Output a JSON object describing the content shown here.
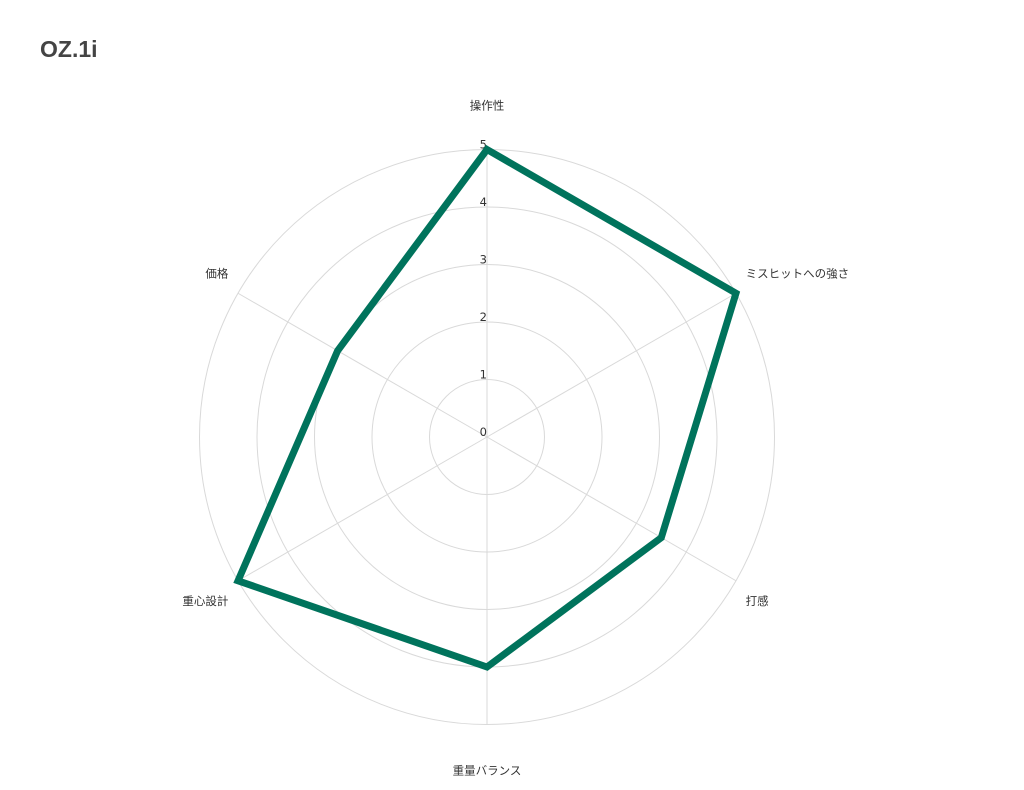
{
  "title": "OZ.1i",
  "chart_data": {
    "type": "radar",
    "title": "OZ.1i",
    "categories": [
      "操作性",
      "ミスヒットへの強さ",
      "打感",
      "重量バランス",
      "重心設計",
      "価格"
    ],
    "series": [
      {
        "values": [
          5,
          5,
          3.5,
          4,
          5,
          3
        ],
        "color": "#00735c"
      }
    ],
    "rlim": [
      0,
      5
    ],
    "ticks": [
      "0",
      "1",
      "2",
      "3",
      "4",
      "5"
    ],
    "grid": true,
    "grid_color": "#d9d9d9"
  }
}
